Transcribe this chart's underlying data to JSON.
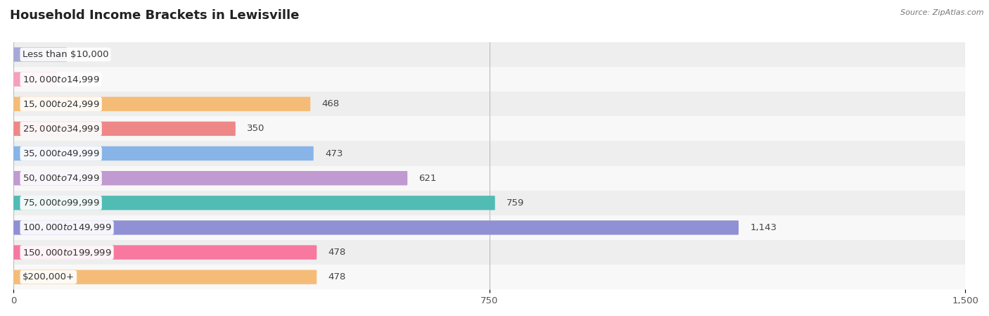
{
  "title": "Household Income Brackets in Lewisville",
  "source": "Source: ZipAtlas.com",
  "categories": [
    "Less than $10,000",
    "$10,000 to $14,999",
    "$15,000 to $24,999",
    "$25,000 to $34,999",
    "$35,000 to $49,999",
    "$50,000 to $74,999",
    "$75,000 to $99,999",
    "$100,000 to $149,999",
    "$150,000 to $199,999",
    "$200,000+"
  ],
  "values": [
    84,
    69,
    468,
    350,
    473,
    621,
    759,
    1143,
    478,
    478
  ],
  "bar_colors": [
    "#a8a8d8",
    "#f5a0bc",
    "#f5bc78",
    "#ee8888",
    "#88b4e8",
    "#c09ad0",
    "#50bcb4",
    "#9090d4",
    "#f878a0",
    "#f5bc78"
  ],
  "row_bg_colors": [
    "#eeeeee",
    "#f8f8f8"
  ],
  "xlim": [
    0,
    1500
  ],
  "xticks": [
    0,
    750,
    1500
  ],
  "title_fontsize": 13,
  "label_fontsize": 9.5,
  "value_fontsize": 9.5,
  "background_color": "#ffffff"
}
